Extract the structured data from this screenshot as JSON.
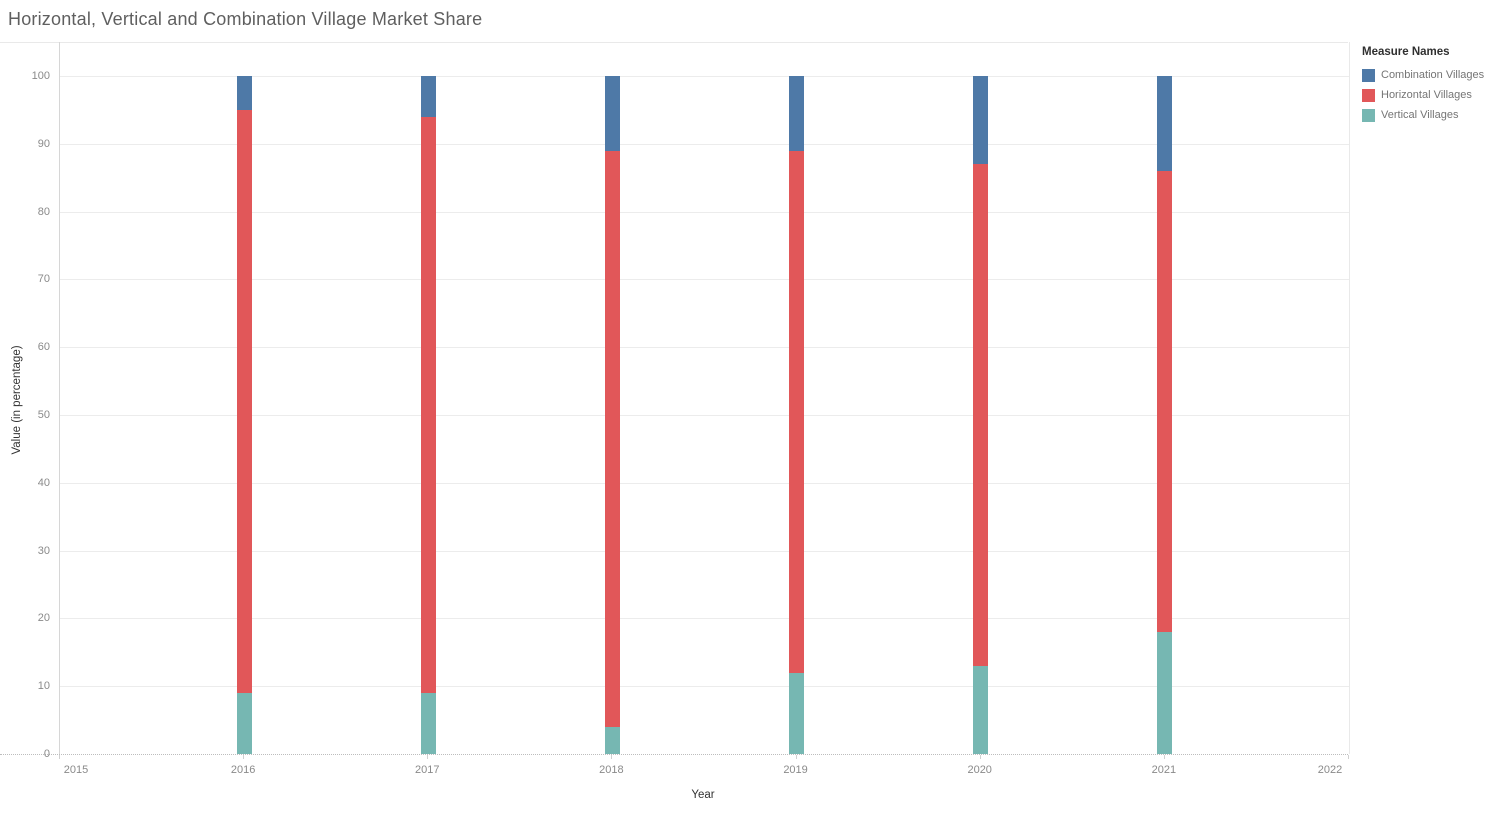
{
  "title": "Horizontal, Vertical and Combination Village Market Share",
  "legend": {
    "title": "Measure Names",
    "items": [
      {
        "label": "Combination Villages",
        "color": "#4e79a7"
      },
      {
        "label": "Horizontal Villages",
        "color": "#e15759"
      },
      {
        "label": "Vertical Villages",
        "color": "#76b7b2"
      }
    ]
  },
  "chart_data": {
    "type": "bar",
    "stacked": true,
    "title": "Horizontal, Vertical and Combination Village Market Share",
    "xlabel": "Year",
    "ylabel": "Value (in percentage)",
    "categories": [
      2016,
      2017,
      2018,
      2019,
      2020,
      2021
    ],
    "series": [
      {
        "name": "Vertical Villages",
        "color": "#76b7b2",
        "values": [
          9,
          9,
          4,
          12,
          13,
          18
        ]
      },
      {
        "name": "Horizontal Villages",
        "color": "#e15759",
        "values": [
          86,
          85,
          85,
          77,
          74,
          68
        ]
      },
      {
        "name": "Combination Villages",
        "color": "#4e79a7",
        "values": [
          5,
          6,
          11,
          11,
          13,
          14
        ]
      }
    ],
    "x_axis_ticks": [
      2015,
      2016,
      2017,
      2018,
      2019,
      2020,
      2021,
      2022
    ],
    "x_range": [
      2015,
      2022
    ],
    "ylim": [
      0,
      100
    ],
    "y_ticks": [
      0,
      10,
      20,
      30,
      40,
      50,
      60,
      70,
      80,
      90,
      100
    ],
    "grid": true,
    "legend_position": "right",
    "legend_title": "Measure Names"
  }
}
